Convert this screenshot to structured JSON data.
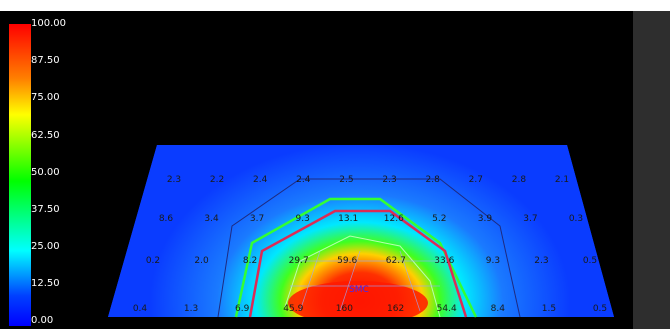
{
  "colorbar": {
    "ticks": [
      "100.00",
      "87.50",
      "75.00",
      "62.50",
      "50.00",
      "37.50",
      "25.00",
      "12.50",
      "0.00"
    ],
    "colors": [
      "#ff0000",
      "#ff8000",
      "#ffff00",
      "#00ff00",
      "#00ffff",
      "#0000ff"
    ]
  },
  "chart_data": {
    "type": "heatmap",
    "zlim": [
      0,
      100
    ],
    "rows": [
      [
        "2.3",
        "2.2",
        "2.4",
        "2.4",
        "2.5",
        "2.3",
        "2.8",
        "2.7",
        "2.8",
        "2.1"
      ],
      [
        "8.6",
        "3.4",
        "3.7",
        "9.3",
        "13.1",
        "12.6",
        "5.2",
        "3.9",
        "3.7",
        "0.3"
      ],
      [
        "0.2",
        "2.0",
        "8.2",
        "29.7",
        "59.6",
        "62.7",
        "33.6",
        "9.3",
        "2.3",
        "0.5"
      ],
      [
        "0.4",
        "1.3",
        "6.9",
        "45.9",
        "160",
        "162",
        "54.4",
        "8.4",
        "1.5",
        "0.5"
      ]
    ]
  },
  "colors": {
    "background": "#000000",
    "plane": "#0a3cff",
    "contour_green": "#33ff33",
    "contour_red": "#dd2b55",
    "side_panel": "#2e2e2e"
  }
}
